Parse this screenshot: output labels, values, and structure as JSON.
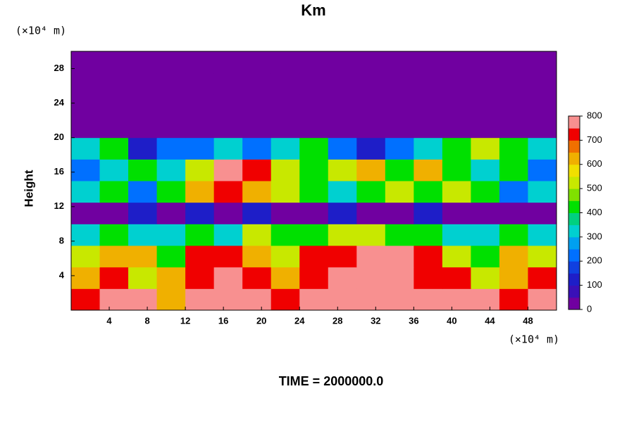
{
  "chart_data": {
    "type": "heatmap",
    "title": "Km",
    "y_label": "Height",
    "y_unit": "(×10⁴ m)",
    "x_unit": "(×10⁴ m)",
    "footer": "TIME = 2000000.0",
    "xlim": [
      0,
      51
    ],
    "ylim": [
      0,
      30
    ],
    "xticks": [
      4,
      8,
      12,
      16,
      20,
      24,
      28,
      32,
      36,
      40,
      44,
      48
    ],
    "yticks": [
      4,
      8,
      12,
      16,
      20,
      24,
      28
    ],
    "x": [
      1.5,
      4.5,
      7.5,
      10.5,
      13.5,
      16.5,
      19.5,
      22.5,
      25.5,
      28.5,
      31.5,
      34.5,
      37.5,
      40.5,
      43.5,
      46.5,
      49.5
    ],
    "y": [
      1.25,
      3.75,
      6.25,
      8.75,
      11.25,
      13.75,
      16.25,
      18.75,
      21.25,
      23.75,
      26.25,
      28.75
    ],
    "z": [
      [
        700,
        800,
        800,
        600,
        800,
        800,
        800,
        700,
        800,
        800,
        800,
        800,
        800,
        800,
        800,
        700,
        800
      ],
      [
        600,
        700,
        500,
        600,
        700,
        800,
        700,
        600,
        700,
        800,
        800,
        800,
        700,
        700,
        500,
        600,
        700
      ],
      [
        500,
        600,
        600,
        400,
        700,
        700,
        600,
        500,
        700,
        700,
        800,
        800,
        700,
        500,
        400,
        600,
        500
      ],
      [
        300,
        400,
        300,
        300,
        400,
        300,
        500,
        400,
        400,
        500,
        500,
        400,
        400,
        300,
        300,
        400,
        300
      ],
      [
        0,
        0,
        100,
        0,
        100,
        0,
        100,
        0,
        0,
        100,
        0,
        0,
        100,
        0,
        0,
        0,
        0
      ],
      [
        300,
        400,
        200,
        400,
        600,
        700,
        600,
        500,
        400,
        300,
        400,
        500,
        400,
        500,
        400,
        200,
        300
      ],
      [
        200,
        300,
        400,
        300,
        500,
        800,
        700,
        500,
        400,
        500,
        600,
        400,
        600,
        400,
        300,
        400,
        200
      ],
      [
        300,
        400,
        100,
        200,
        200,
        300,
        200,
        300,
        400,
        200,
        100,
        200,
        300,
        400,
        500,
        400,
        300
      ],
      [
        0,
        0,
        0,
        0,
        0,
        0,
        0,
        0,
        0,
        0,
        0,
        0,
        0,
        0,
        0,
        0,
        0
      ],
      [
        0,
        0,
        0,
        0,
        0,
        0,
        0,
        0,
        0,
        0,
        0,
        0,
        0,
        0,
        0,
        0,
        0
      ],
      [
        0,
        0,
        0,
        0,
        0,
        0,
        0,
        0,
        0,
        0,
        0,
        0,
        0,
        0,
        0,
        0,
        0
      ],
      [
        0,
        0,
        0,
        0,
        0,
        0,
        0,
        0,
        0,
        0,
        0,
        0,
        0,
        0,
        0,
        0,
        0
      ]
    ],
    "clim": [
      0,
      800
    ],
    "cticks": [
      0,
      100,
      200,
      300,
      400,
      500,
      600,
      700,
      800
    ],
    "colors": [
      "#7000a0",
      "#3a10b8",
      "#1e1ec8",
      "#1040e0",
      "#0070ff",
      "#00a0f0",
      "#00d0d0",
      "#00d080",
      "#00e000",
      "#80e000",
      "#c8e800",
      "#f0e000",
      "#f0b000",
      "#f07000",
      "#f00000",
      "#f89090"
    ]
  }
}
